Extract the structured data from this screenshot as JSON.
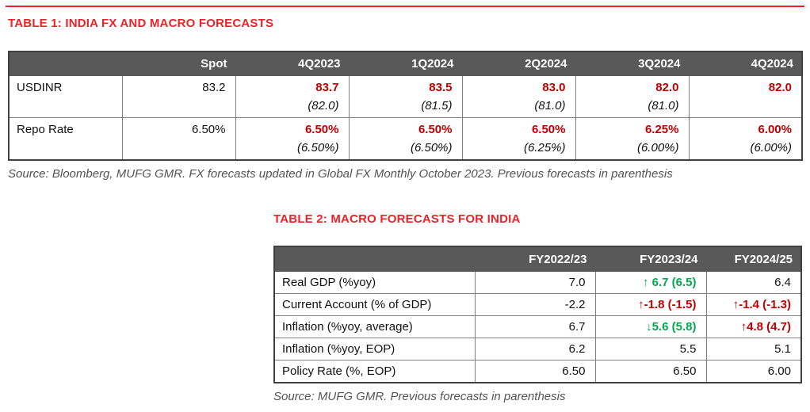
{
  "colors": {
    "accent_red": "#ed2228",
    "value_red": "#c00000",
    "green": "#00a94f",
    "header_bg": "#595959",
    "border_gray": "#7f7f7f",
    "outer_border": "#404040",
    "source_gray": "#545454"
  },
  "table1": {
    "title": "TABLE 1: INDIA FX AND MACRO FORECASTS",
    "columns": [
      "",
      "Spot",
      "4Q2023",
      "1Q2024",
      "2Q2024",
      "3Q2024",
      "4Q2024"
    ],
    "rows": [
      {
        "label": "USDINR",
        "spot": "83.2",
        "forecasts": [
          {
            "value": "83.7",
            "prev": "(82.0)"
          },
          {
            "value": "83.5",
            "prev": "(81.5)"
          },
          {
            "value": "83.0",
            "prev": "(81.0)"
          },
          {
            "value": "82.0",
            "prev": "(81.0)"
          },
          {
            "value": "82.0",
            "prev": ""
          }
        ]
      },
      {
        "label": "Repo Rate",
        "spot": "6.50%",
        "forecasts": [
          {
            "value": "6.50%",
            "prev": "(6.50%)"
          },
          {
            "value": "6.50%",
            "prev": "(6.50%)"
          },
          {
            "value": "6.50%",
            "prev": "(6.25%)"
          },
          {
            "value": "6.25%",
            "prev": "(6.00%)"
          },
          {
            "value": "6.00%",
            "prev": "(6.00%)"
          }
        ]
      }
    ],
    "source": "Source: Bloomberg, MUFG GMR. FX forecasts updated in Global FX Monthly October 2023. Previous forecasts in parenthesis"
  },
  "table2": {
    "title": "TABLE 2: MACRO FORECASTS FOR INDIA",
    "columns": [
      "",
      "FY2022/23",
      "FY2023/24",
      "FY2024/25"
    ],
    "rows": [
      {
        "label": "Real GDP (%yoy)",
        "cells": [
          {
            "arrow": "",
            "value": "7.0",
            "color": "black"
          },
          {
            "arrow": "↑ ",
            "value": "6.7 (6.5)",
            "color": "green"
          },
          {
            "arrow": "",
            "value": "6.4",
            "color": "black"
          }
        ]
      },
      {
        "label": "Current Account (% of GDP)",
        "cells": [
          {
            "arrow": "",
            "value": "-2.2",
            "color": "black"
          },
          {
            "arrow": "↑",
            "value": "-1.8 (-1.5)",
            "color": "red"
          },
          {
            "arrow": "↑",
            "value": "-1.4 (-1.3)",
            "color": "red"
          }
        ]
      },
      {
        "label": "Inflation (%yoy, average)",
        "cells": [
          {
            "arrow": "",
            "value": "6.7",
            "color": "black"
          },
          {
            "arrow": "↓",
            "value": "5.6 (5.8)",
            "color": "green"
          },
          {
            "arrow": "↑",
            "value": "4.8 (4.7)",
            "color": "red"
          }
        ]
      },
      {
        "label": "Inflation (%yoy, EOP)",
        "cells": [
          {
            "arrow": "",
            "value": "6.2",
            "color": "black"
          },
          {
            "arrow": "",
            "value": "5.5",
            "color": "black"
          },
          {
            "arrow": "",
            "value": "5.1",
            "color": "black"
          }
        ]
      },
      {
        "label": "Policy Rate (%, EOP)",
        "cells": [
          {
            "arrow": "",
            "value": "6.50",
            "color": "black"
          },
          {
            "arrow": "",
            "value": "6.50",
            "color": "black"
          },
          {
            "arrow": "",
            "value": "6.00",
            "color": "black"
          }
        ]
      }
    ],
    "source": "Source: MUFG GMR. Previous forecasts in parenthesis"
  }
}
